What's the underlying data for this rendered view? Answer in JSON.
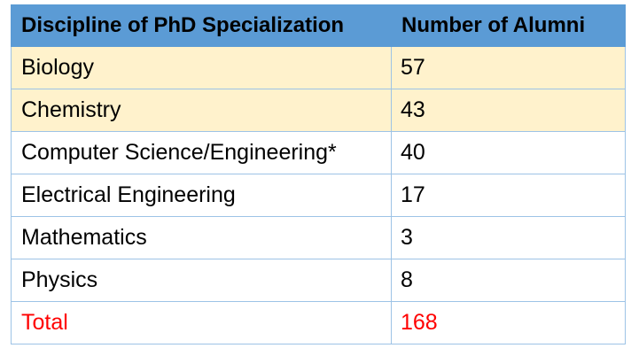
{
  "table": {
    "headers": [
      "Discipline of PhD Specialization",
      "Number of Alumni"
    ],
    "rows": [
      {
        "discipline": "Biology",
        "count": "57"
      },
      {
        "discipline": "Chemistry",
        "count": "43"
      },
      {
        "discipline": "Computer Science/Engineering*",
        "count": "40"
      },
      {
        "discipline": "Electrical Engineering",
        "count": "17"
      },
      {
        "discipline": "Mathematics",
        "count": "3"
      },
      {
        "discipline": "Physics",
        "count": "8"
      }
    ],
    "total": {
      "label": "Total",
      "count": "168"
    }
  },
  "colors": {
    "header_bg": "#5b9bd5",
    "highlight_bg": "#fff2cc",
    "border": "#9dc3e6",
    "total_text": "#ff0000"
  }
}
